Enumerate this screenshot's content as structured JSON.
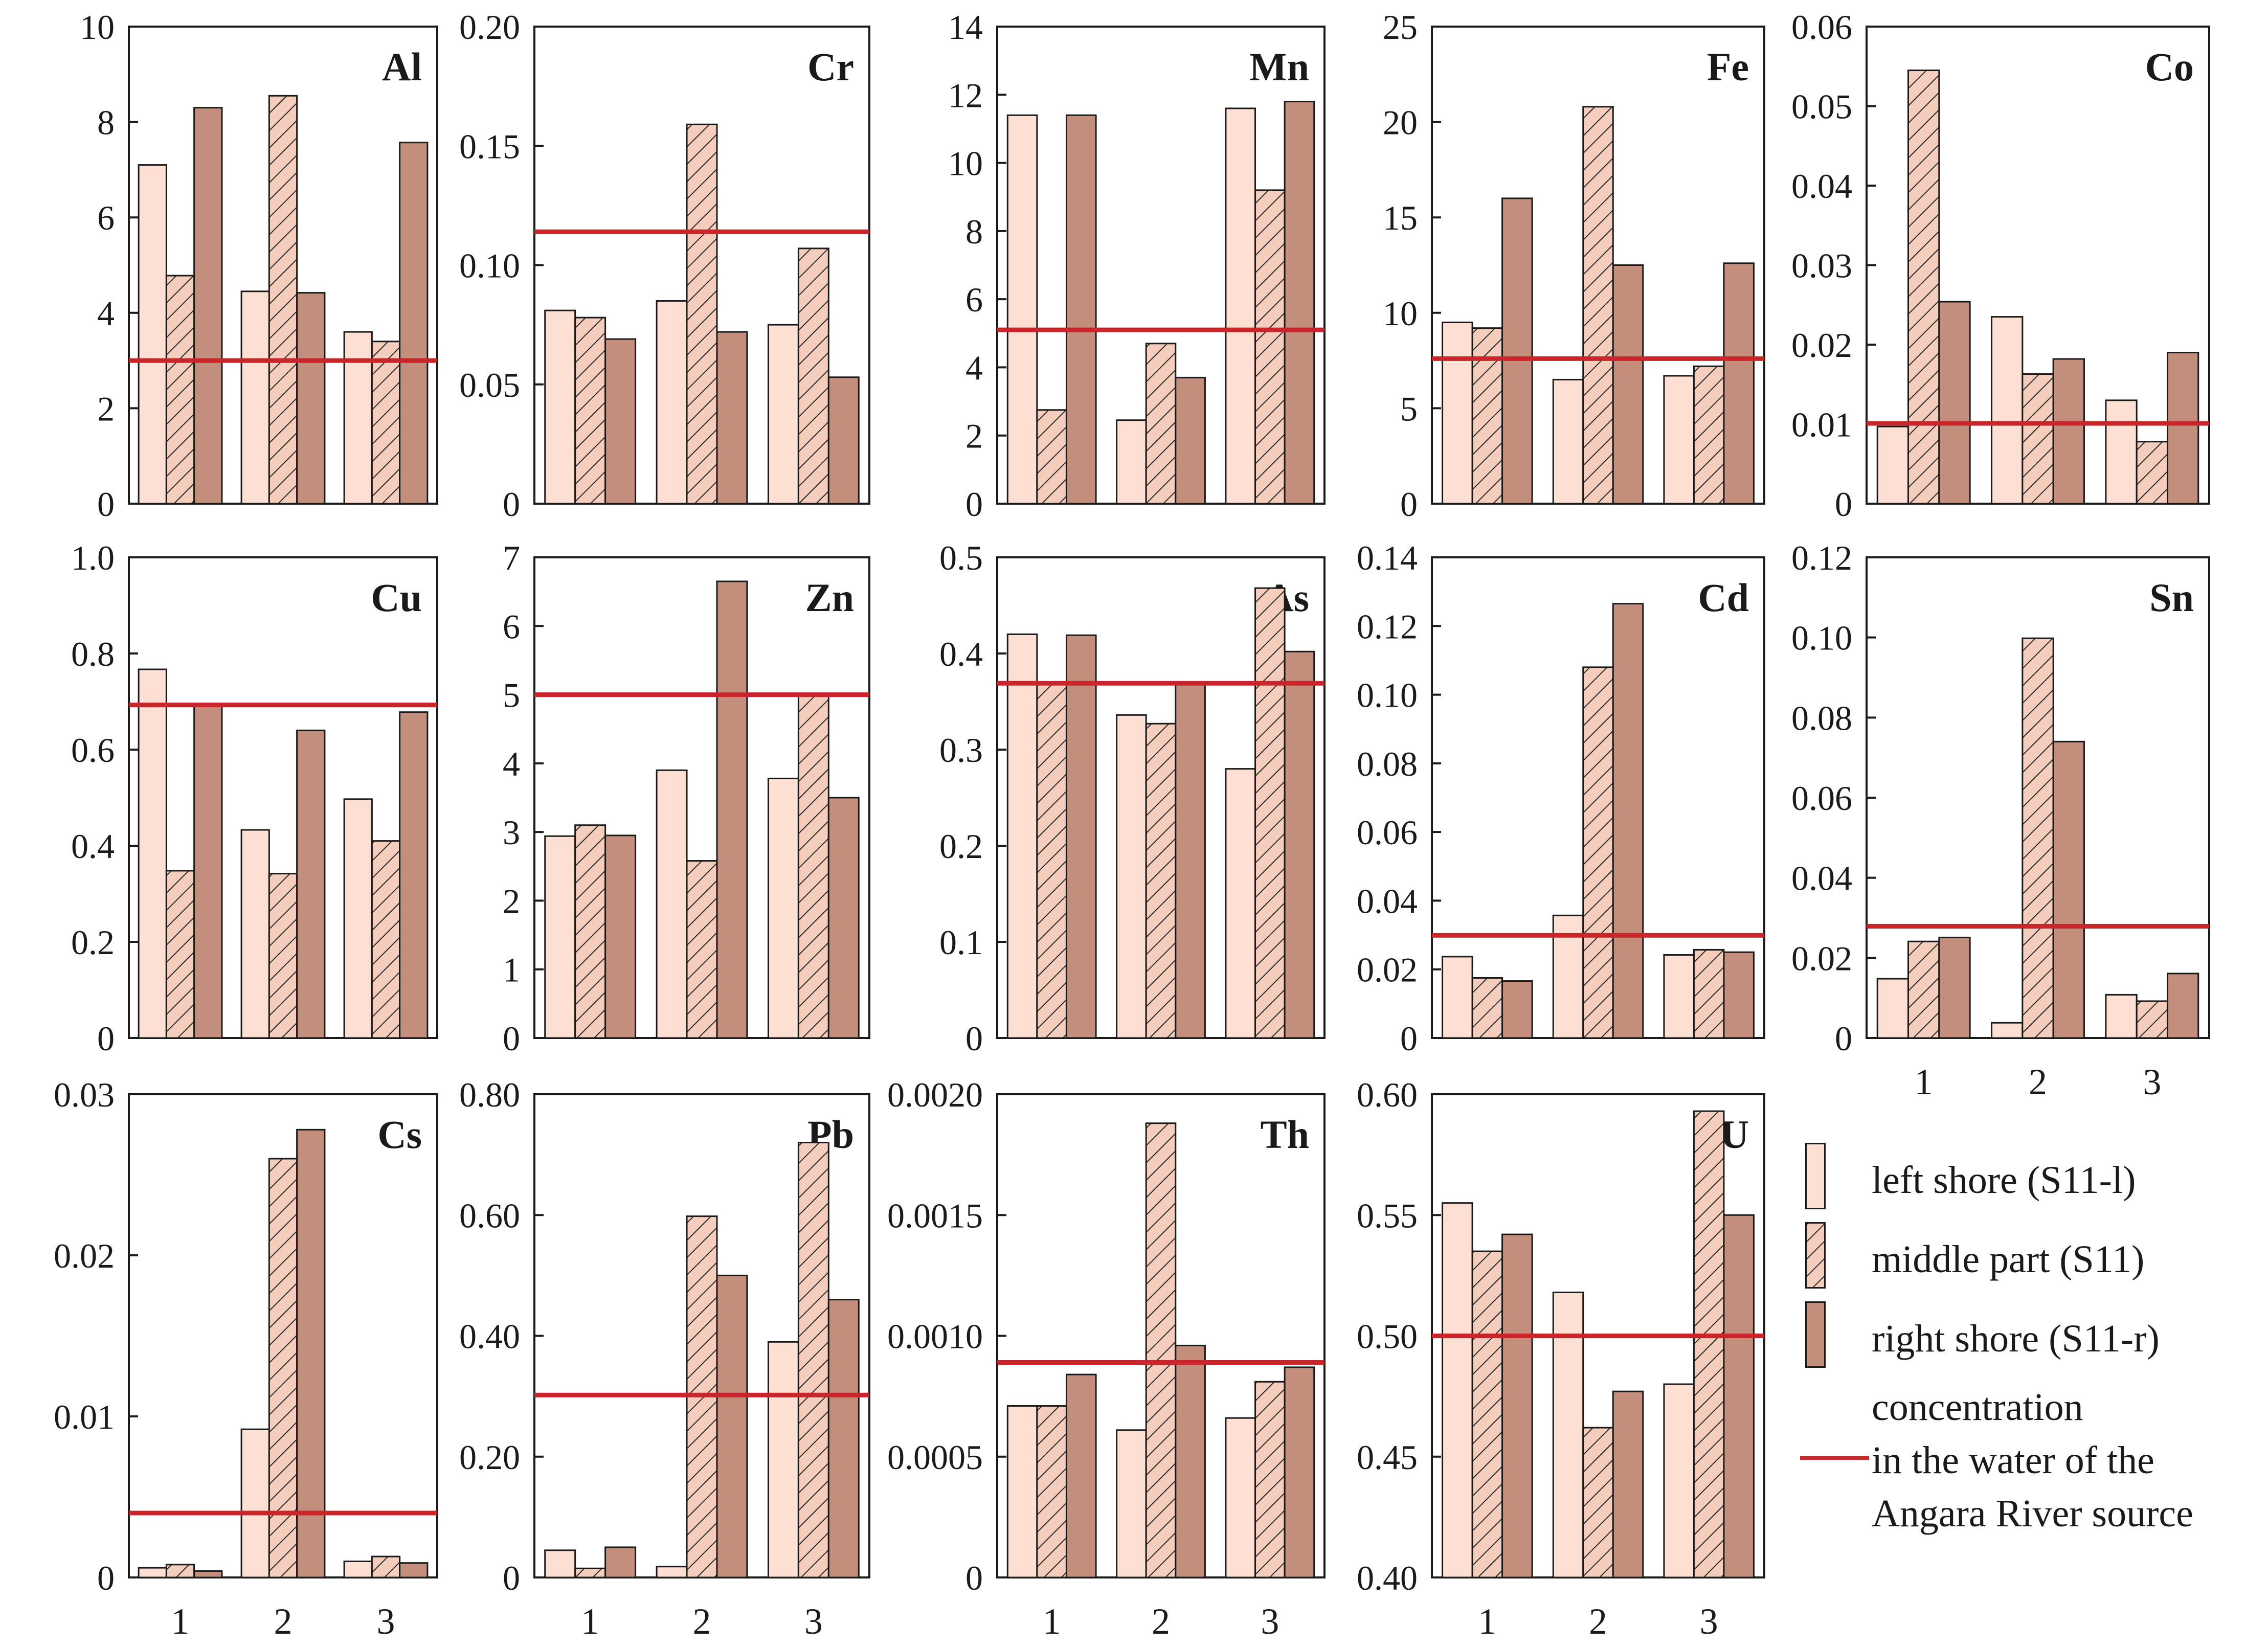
{
  "colors": {
    "left": "#fde0d3",
    "right": "#c48e7d",
    "hatch_bg": "#f4cdbd",
    "ref_line": "#c8262a",
    "axis": "#1a1a1a"
  },
  "legend": {
    "left": "left shore (S11-l)",
    "middle": "middle part (S11)",
    "right": "right shore (S11-r)",
    "ref_line1": "concentration",
    "ref_line2": "in the water of the",
    "ref_line3": "Angara River source"
  },
  "chart_data": [
    {
      "type": "bar",
      "title": "Al",
      "categories": [
        "1",
        "2",
        "3"
      ],
      "series": [
        {
          "name": "left shore (S11-l)",
          "values": [
            7.1,
            4.45,
            3.6
          ]
        },
        {
          "name": "middle part (S11)",
          "values": [
            4.78,
            8.55,
            3.4
          ]
        },
        {
          "name": "right shore (S11-r)",
          "values": [
            8.3,
            4.42,
            7.57
          ]
        }
      ],
      "reference": 3.0,
      "ylim": [
        0,
        10
      ],
      "yticks": [
        "0",
        "2",
        "4",
        "6",
        "8",
        "10"
      ]
    },
    {
      "type": "bar",
      "title": "Cr",
      "categories": [
        "1",
        "2",
        "3"
      ],
      "series": [
        {
          "name": "left shore (S11-l)",
          "values": [
            0.081,
            0.085,
            0.075
          ]
        },
        {
          "name": "middle part (S11)",
          "values": [
            0.078,
            0.159,
            0.107
          ]
        },
        {
          "name": "right shore (S11-r)",
          "values": [
            0.069,
            0.072,
            0.053
          ]
        }
      ],
      "reference": 0.114,
      "ylim": [
        0,
        0.2
      ],
      "yticks": [
        "0",
        "0.05",
        "0.10",
        "0.15",
        "0.20"
      ]
    },
    {
      "type": "bar",
      "title": "Mn",
      "categories": [
        "1",
        "2",
        "3"
      ],
      "series": [
        {
          "name": "left shore (S11-l)",
          "values": [
            11.4,
            2.45,
            11.6
          ]
        },
        {
          "name": "middle part (S11)",
          "values": [
            2.75,
            4.7,
            9.2
          ]
        },
        {
          "name": "right shore (S11-r)",
          "values": [
            11.4,
            3.7,
            11.8
          ]
        }
      ],
      "reference": 5.1,
      "ylim": [
        0,
        14
      ],
      "yticks": [
        "0",
        "2",
        "4",
        "6",
        "8",
        "10",
        "12",
        "14"
      ]
    },
    {
      "type": "bar",
      "title": "Fe",
      "categories": [
        "1",
        "2",
        "3"
      ],
      "series": [
        {
          "name": "left shore (S11-l)",
          "values": [
            9.5,
            6.5,
            6.7
          ]
        },
        {
          "name": "middle part (S11)",
          "values": [
            9.2,
            20.8,
            7.2
          ]
        },
        {
          "name": "right shore (S11-r)",
          "values": [
            16.0,
            12.5,
            12.6
          ]
        }
      ],
      "reference": 7.6,
      "ylim": [
        0,
        25
      ],
      "yticks": [
        "0",
        "5",
        "10",
        "15",
        "20",
        "25"
      ]
    },
    {
      "type": "bar",
      "title": "Co",
      "categories": [
        "1",
        "2",
        "3"
      ],
      "series": [
        {
          "name": "left shore (S11-l)",
          "values": [
            0.0097,
            0.0235,
            0.013
          ]
        },
        {
          "name": "middle part (S11)",
          "values": [
            0.0545,
            0.0163,
            0.0078
          ]
        },
        {
          "name": "right shore (S11-r)",
          "values": [
            0.0254,
            0.0182,
            0.019
          ]
        }
      ],
      "reference": 0.0101,
      "ylim": [
        0,
        0.06
      ],
      "yticks": [
        "0",
        "0.01",
        "0.02",
        "0.03",
        "0.04",
        "0.05",
        "0.06"
      ]
    },
    {
      "type": "bar",
      "title": "Cu",
      "categories": [
        "1",
        "2",
        "3"
      ],
      "series": [
        {
          "name": "left shore (S11-l)",
          "values": [
            0.767,
            0.433,
            0.497
          ]
        },
        {
          "name": "middle part (S11)",
          "values": [
            0.348,
            0.342,
            0.41
          ]
        },
        {
          "name": "right shore (S11-r)",
          "values": [
            0.69,
            0.64,
            0.678
          ]
        }
      ],
      "reference": 0.693,
      "ylim": [
        0,
        1.0
      ],
      "yticks": [
        "0",
        "0.2",
        "0.4",
        "0.6",
        "0.8",
        "1.0"
      ]
    },
    {
      "type": "bar",
      "title": "Zn",
      "categories": [
        "1",
        "2",
        "3"
      ],
      "series": [
        {
          "name": "left shore (S11-l)",
          "values": [
            2.94,
            3.9,
            3.78
          ]
        },
        {
          "name": "middle part (S11)",
          "values": [
            3.1,
            2.58,
            5.0
          ]
        },
        {
          "name": "right shore (S11-r)",
          "values": [
            2.95,
            6.65,
            3.5
          ]
        }
      ],
      "reference": 5.0,
      "ylim": [
        0,
        7
      ],
      "yticks": [
        "0",
        "1",
        "2",
        "3",
        "4",
        "5",
        "6",
        "7"
      ]
    },
    {
      "type": "bar",
      "title": "As",
      "categories": [
        "1",
        "2",
        "3"
      ],
      "series": [
        {
          "name": "left shore (S11-l)",
          "values": [
            0.42,
            0.336,
            0.28
          ]
        },
        {
          "name": "middle part (S11)",
          "values": [
            0.37,
            0.327,
            0.468
          ]
        },
        {
          "name": "right shore (S11-r)",
          "values": [
            0.419,
            0.37,
            0.402
          ]
        }
      ],
      "reference": 0.369,
      "ylim": [
        0,
        0.5
      ],
      "yticks": [
        "0",
        "0.1",
        "0.2",
        "0.3",
        "0.4",
        "0.5"
      ]
    },
    {
      "type": "bar",
      "title": "Cd",
      "categories": [
        "1",
        "2",
        "3"
      ],
      "series": [
        {
          "name": "left shore (S11-l)",
          "values": [
            0.0237,
            0.0357,
            0.0242
          ]
        },
        {
          "name": "middle part (S11)",
          "values": [
            0.0175,
            0.108,
            0.0257
          ]
        },
        {
          "name": "right shore (S11-r)",
          "values": [
            0.0166,
            0.1265,
            0.025
          ]
        }
      ],
      "reference": 0.0299,
      "ylim": [
        0,
        0.14
      ],
      "yticks": [
        "0",
        "0.02",
        "0.04",
        "0.06",
        "0.08",
        "0.10",
        "0.12",
        "0.14"
      ]
    },
    {
      "type": "bar",
      "title": "Sn",
      "categories": [
        "1",
        "2",
        "3"
      ],
      "series": [
        {
          "name": "left shore (S11-l)",
          "values": [
            0.0148,
            0.0038,
            0.0108
          ]
        },
        {
          "name": "middle part (S11)",
          "values": [
            0.0241,
            0.0998,
            0.0092
          ]
        },
        {
          "name": "right shore (S11-r)",
          "values": [
            0.0251,
            0.074,
            0.0161
          ]
        }
      ],
      "reference": 0.0279,
      "ylim": [
        0,
        0.12
      ],
      "yticks": [
        "0",
        "0.02",
        "0.04",
        "0.06",
        "0.08",
        "0.10",
        "0.12"
      ]
    },
    {
      "type": "bar",
      "title": "Cs",
      "categories": [
        "1",
        "2",
        "3"
      ],
      "series": [
        {
          "name": "left shore (S11-l)",
          "values": [
            0.0006,
            0.0092,
            0.001
          ]
        },
        {
          "name": "middle part (S11)",
          "values": [
            0.0008,
            0.026,
            0.0013
          ]
        },
        {
          "name": "right shore (S11-r)",
          "values": [
            0.0004,
            0.0278,
            0.0009
          ]
        }
      ],
      "reference": 0.004,
      "ylim": [
        0,
        0.03
      ],
      "yticks": [
        "0",
        "0.01",
        "0.02",
        "0.03"
      ]
    },
    {
      "type": "bar",
      "title": "Pb",
      "categories": [
        "1",
        "2",
        "3"
      ],
      "series": [
        {
          "name": "left shore (S11-l)",
          "values": [
            0.045,
            0.018,
            0.39
          ]
        },
        {
          "name": "middle part (S11)",
          "values": [
            0.015,
            0.598,
            0.72
          ]
        },
        {
          "name": "right shore (S11-r)",
          "values": [
            0.05,
            0.5,
            0.46
          ]
        }
      ],
      "reference": 0.302,
      "ylim": [
        0,
        0.8
      ],
      "yticks": [
        "0",
        "0.20",
        "0.40",
        "0.60",
        "0.80"
      ]
    },
    {
      "type": "bar",
      "title": "Th",
      "categories": [
        "1",
        "2",
        "3"
      ],
      "series": [
        {
          "name": "left shore (S11-l)",
          "values": [
            0.00071,
            0.00061,
            0.00066
          ]
        },
        {
          "name": "middle part (S11)",
          "values": [
            0.00071,
            0.00188,
            0.00081
          ]
        },
        {
          "name": "right shore (S11-r)",
          "values": [
            0.00084,
            0.00096,
            0.00087
          ]
        }
      ],
      "reference": 0.00089,
      "ylim": [
        0,
        0.002
      ],
      "yticks": [
        "0",
        "0.0005",
        "0.0010",
        "0.0015",
        "0.0020"
      ]
    },
    {
      "type": "bar",
      "title": "U",
      "categories": [
        "1",
        "2",
        "3"
      ],
      "series": [
        {
          "name": "left shore (S11-l)",
          "values": [
            0.555,
            0.518,
            0.48
          ]
        },
        {
          "name": "middle part (S11)",
          "values": [
            0.535,
            0.462,
            0.593
          ]
        },
        {
          "name": "right shore (S11-r)",
          "values": [
            0.542,
            0.477,
            0.55
          ]
        }
      ],
      "reference": 0.5,
      "ylim": [
        0.4,
        0.6
      ],
      "yticks": [
        "0.40",
        "0.45",
        "0.50",
        "0.55",
        "0.60"
      ]
    }
  ]
}
